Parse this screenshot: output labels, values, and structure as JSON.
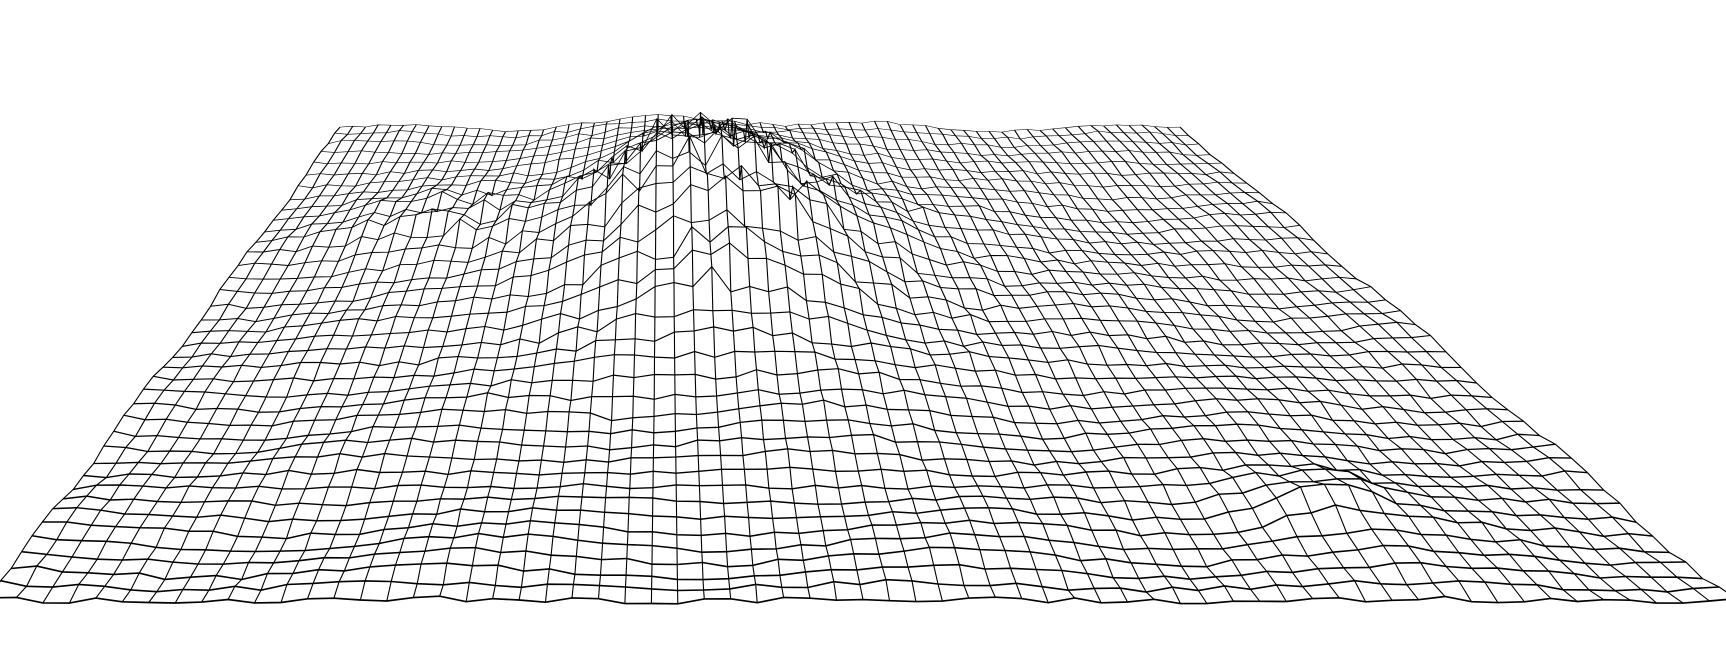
{
  "scene": {
    "type": "3d-wireframe-surface",
    "background_color": "#ffffff",
    "line_color": "#000000",
    "grid_rows": 38,
    "grid_columns": 66,
    "features": [
      {
        "name": "central-peak",
        "shape": "broad-jagged-mound"
      },
      {
        "name": "left-ridge",
        "shape": "low-spiky-ridge"
      },
      {
        "name": "front-right-bump",
        "shape": "small-jagged-bump"
      }
    ]
  }
}
